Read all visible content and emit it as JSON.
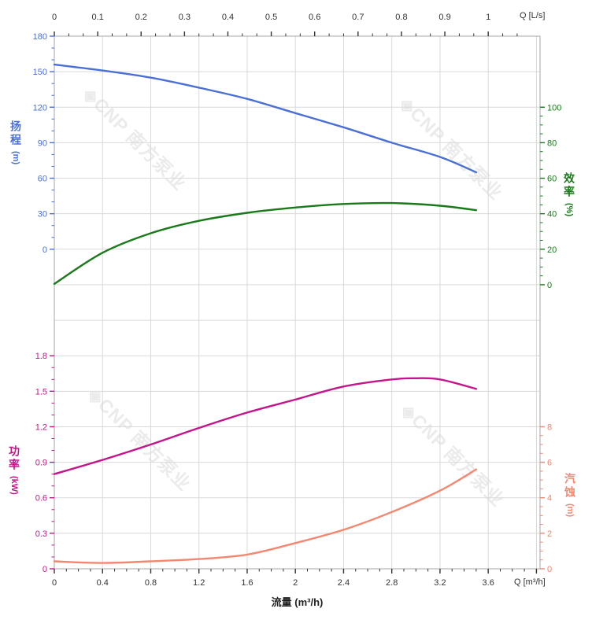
{
  "watermark": {
    "text": "◈CNP 南方泵业",
    "color": "#ebebec"
  },
  "chart_data": {
    "type": "line",
    "grid_color": "#d9d9d9",
    "border_color": "#a6a6a6",
    "tick_color": "#333333",
    "x_bottom": {
      "title": "流量 (m³/h)",
      "unit_label": "Q [m³/h]",
      "labels": [
        "0",
        "0.4",
        "0.8",
        "1.2",
        "1.6",
        "2",
        "2.4",
        "2.8",
        "3.2",
        "3.6"
      ],
      "values": [
        0,
        0.4,
        0.8,
        1.2,
        1.6,
        2,
        2.4,
        2.8,
        3.2,
        3.6
      ],
      "range": [
        0,
        4.03
      ],
      "minor_step": 0.1
    },
    "x_top": {
      "unit_label": "Q [L/s]",
      "labels": [
        "0",
        "0.1",
        "0.2",
        "0.3",
        "0.4",
        "0.5",
        "0.6",
        "0.7",
        "0.8",
        "0.9",
        "1"
      ],
      "values": [
        0,
        0.1,
        0.2,
        0.3,
        0.4,
        0.5,
        0.6,
        0.7,
        0.8,
        0.9,
        1
      ],
      "m3h_per_lps": 3.6,
      "minor_divisions": 3
    },
    "axes": {
      "head": {
        "name": "扬程",
        "unit": "(m)",
        "side": "left",
        "color": "#4a6fd6",
        "max": 180,
        "min": 0,
        "row_at_max": 0,
        "row_at_min": 6,
        "major_step": 30,
        "minor_divisions": 3,
        "labels": [
          "180",
          "150",
          "120",
          "90",
          "60",
          "30",
          "0"
        ]
      },
      "eff": {
        "name": "效率",
        "unit": "(%)",
        "side": "right",
        "color": "#1a7a1a",
        "max": 100,
        "min": 0,
        "row_at_max": 2,
        "row_at_min": 7,
        "major_step": 20,
        "minor_divisions": 4,
        "labels": [
          "100",
          "80",
          "60",
          "40",
          "20",
          "0"
        ]
      },
      "power": {
        "name": "功率",
        "unit": "(kW)",
        "side": "left",
        "color": "#c6148a",
        "max": 1.8,
        "min": 0,
        "row_at_max": 9,
        "row_at_min": 15,
        "major_step": 0.3,
        "minor_divisions": 3,
        "labels": [
          "1.8",
          "1.5",
          "1.2",
          "0.9",
          "0.6",
          "0.3",
          "0"
        ]
      },
      "npsh": {
        "name": "汽蚀",
        "unit": "(m)",
        "side": "right",
        "color": "#f5866f",
        "max": 8,
        "min": 0,
        "row_at_max": 11,
        "row_at_min": 15,
        "major_step": 2,
        "minor_divisions": 4,
        "labels": [
          "8",
          "6",
          "4",
          "2",
          "0"
        ]
      }
    },
    "series": [
      {
        "id": "head",
        "axis": "head",
        "color": "#4a6fd6",
        "width": 2.4,
        "points": [
          [
            0,
            156
          ],
          [
            0.4,
            151
          ],
          [
            0.8,
            145
          ],
          [
            1.2,
            136.5
          ],
          [
            1.6,
            127
          ],
          [
            2,
            115
          ],
          [
            2.4,
            103
          ],
          [
            2.8,
            90
          ],
          [
            3.2,
            78
          ],
          [
            3.5,
            65
          ]
        ]
      },
      {
        "id": "efficiency",
        "axis": "eff",
        "color": "#1a7a1a",
        "width": 2.4,
        "points": [
          [
            0,
            0.5
          ],
          [
            0.4,
            18
          ],
          [
            0.8,
            29
          ],
          [
            1.2,
            36
          ],
          [
            1.6,
            40.5
          ],
          [
            2,
            43.5
          ],
          [
            2.4,
            45.5
          ],
          [
            2.8,
            46
          ],
          [
            3.2,
            44.5
          ],
          [
            3.5,
            42
          ]
        ]
      },
      {
        "id": "power",
        "axis": "power",
        "color": "#c6148a",
        "width": 2.4,
        "points": [
          [
            0,
            0.8
          ],
          [
            0.4,
            0.92
          ],
          [
            0.8,
            1.05
          ],
          [
            1.2,
            1.19
          ],
          [
            1.6,
            1.32
          ],
          [
            2,
            1.43
          ],
          [
            2.4,
            1.54
          ],
          [
            2.8,
            1.6
          ],
          [
            3,
            1.61
          ],
          [
            3.2,
            1.6
          ],
          [
            3.5,
            1.52
          ]
        ]
      },
      {
        "id": "npsh",
        "axis": "npsh",
        "color": "#f5866f",
        "width": 2.4,
        "points": [
          [
            0,
            0.42
          ],
          [
            0.4,
            0.33
          ],
          [
            0.8,
            0.42
          ],
          [
            1.2,
            0.55
          ],
          [
            1.6,
            0.8
          ],
          [
            2,
            1.45
          ],
          [
            2.4,
            2.2
          ],
          [
            2.8,
            3.2
          ],
          [
            3.2,
            4.4
          ],
          [
            3.5,
            5.6
          ]
        ]
      }
    ]
  }
}
